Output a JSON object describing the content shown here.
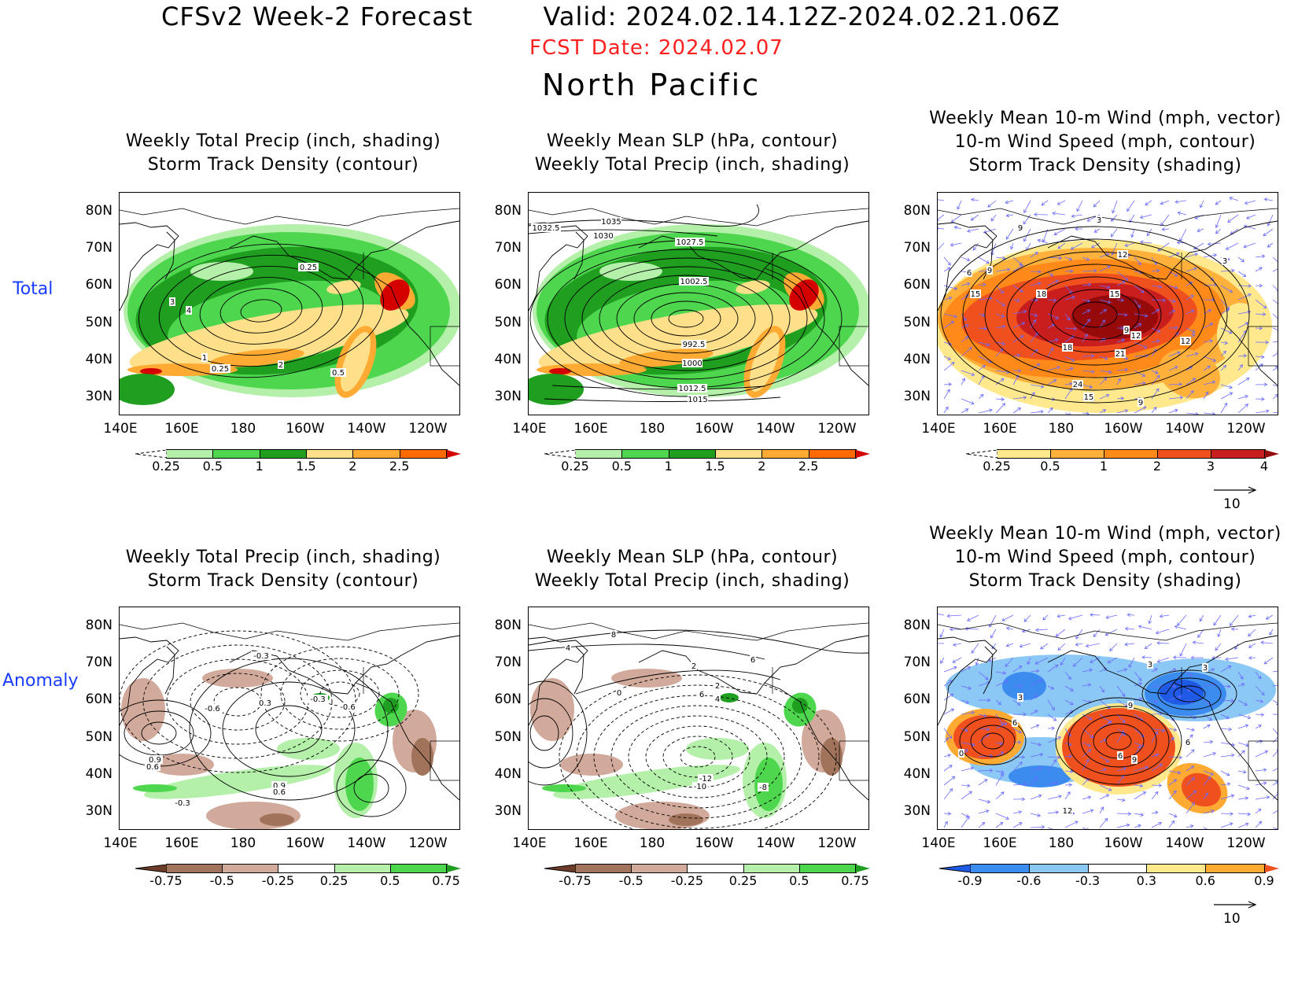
{
  "header": {
    "title": "CFSv2 Week-2 Forecast        Valid: 2024.02.14.12Z-2024.02.21.06Z",
    "fcst_date": "FCST Date: 2024.02.07",
    "region": "North Pacific"
  },
  "row_labels": {
    "total": "Total",
    "anomaly": "Anomaly"
  },
  "panel_titles": {
    "precip_storm": "Weekly Total Precip (inch, shading)\nStorm Track Density (contour)",
    "slp_precip": "Weekly Mean SLP (hPa, contour)\nWeekly Total Precip (inch, shading)",
    "wind_storm": "Weekly Mean 10-m Wind (mph, vector)\n10-m Wind Speed (mph, contour)\nStorm Track Density (shading)"
  },
  "axes": {
    "lat_labels": [
      "80N",
      "70N",
      "60N",
      "50N",
      "40N",
      "30N"
    ],
    "lon_labels": [
      "140E",
      "160E",
      "180",
      "160W",
      "140W",
      "120W"
    ]
  },
  "colorbars": {
    "precip_total": [
      "0.25",
      "0.5",
      "1",
      "1.5",
      "2",
      "2.5"
    ],
    "storm_total": [
      "0.25",
      "0.5",
      "1",
      "2",
      "3",
      "4"
    ],
    "precip_anom": [
      "-0.75",
      "-0.5",
      "-0.25",
      "0.25",
      "0.5",
      "0.75"
    ],
    "storm_anom": [
      "-0.9",
      "-0.6",
      "-0.3",
      "0.3",
      "0.6",
      "0.9"
    ],
    "colors": {
      "precip_total": [
        "#ffffff",
        "#b4f0aa",
        "#4fd64f",
        "#1f9e1f",
        "#ffe08a",
        "#ffaa33",
        "#ff6a00",
        "#d40000"
      ],
      "storm_total": [
        "#ffffff",
        "#ffe98c",
        "#ffb13c",
        "#ff8a1a",
        "#f0501e",
        "#c81e1e",
        "#960a0a"
      ],
      "precip_anom": [
        "#6e3c28",
        "#a0735a",
        "#d2aa9b",
        "#ffffff",
        "#b4f0aa",
        "#4fd64f",
        "#1f9e1f"
      ],
      "storm_anom": [
        "#1e5ae6",
        "#3c8cf0",
        "#8cc8f5",
        "#ffffff",
        "#ffe98c",
        "#ffaa33",
        "#f0501e"
      ]
    }
  },
  "contour_labels": {
    "t1": [
      "3",
      "4",
      "0.25",
      "1",
      "2",
      "0.5",
      "0.25"
    ],
    "t2": [
      "1035",
      "1032.5",
      "1030",
      "1027.5",
      "1002.5",
      "992.5",
      "1000",
      "1012.5",
      "1015"
    ],
    "t3": [
      "9",
      "3",
      "12",
      "6",
      "9",
      "15",
      "18",
      "15",
      "9",
      "12",
      "18",
      "21",
      "12",
      "24",
      "15",
      "9",
      "3"
    ],
    "a1": [
      "-0.3",
      "0.3",
      "-0.3",
      "-0.6",
      "-0.6",
      "0.9",
      "0.6",
      "0.9",
      "0.6",
      "-0.3"
    ],
    "a2": [
      "8",
      "4",
      "2",
      "6",
      "2",
      "0",
      "4",
      "6",
      "-12",
      "-10",
      "-8"
    ],
    "a3": [
      "3",
      "3",
      "9",
      "6",
      "0",
      "6",
      "9",
      "6",
      "12",
      "3"
    ]
  },
  "vector_reference": "10"
}
